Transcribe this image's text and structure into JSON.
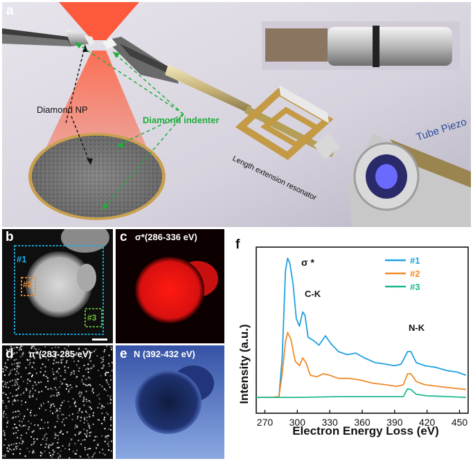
{
  "panel_a": {
    "label": "a",
    "annotations": {
      "diamond_np": "Diamond NP",
      "diamond_indenter": "Diamond indenter",
      "resonator": "Length extension resonator",
      "tube_piezo": "Tube Piezo"
    },
    "colors": {
      "indenter_arrow": "#1fae3a",
      "np_arrow": "#111111",
      "tube_text": "#2a4f9a"
    }
  },
  "panel_b": {
    "label": "b",
    "regions": [
      "#1",
      "#2",
      "#3"
    ],
    "colors": {
      "region1": "#19b0e6",
      "region2": "#f08a2a",
      "region3": "#6fbf3a"
    }
  },
  "panel_c": {
    "label": "c",
    "title": "σ*(286-336 eV)",
    "color": "#e01a12"
  },
  "panel_d": {
    "label": "d",
    "title": "π*(283-285 eV)"
  },
  "panel_e": {
    "label": "e",
    "title": "N (392-432 eV)",
    "color": "#2e55b0"
  },
  "panel_f": {
    "label": "f",
    "annotations": {
      "sigma": "σ *",
      "ck": "C-K",
      "nk": "N-K"
    }
  },
  "chart_data": {
    "type": "line",
    "xlabel": "Electron Energy Loss (eV)",
    "ylabel": "Intensity (a.u.)",
    "xlim": [
      262,
      458
    ],
    "ylim": [
      0,
      1.05
    ],
    "xticks": [
      270,
      300,
      330,
      360,
      390,
      420,
      450
    ],
    "legend_position": "top-right",
    "series": [
      {
        "name": "#1",
        "color": "#1ea0e0",
        "points": [
          [
            262,
            0.1
          ],
          [
            276,
            0.1
          ],
          [
            283,
            0.105
          ],
          [
            286,
            0.35
          ],
          [
            289,
            0.9
          ],
          [
            291,
            0.98
          ],
          [
            293,
            0.95
          ],
          [
            296,
            0.82
          ],
          [
            299,
            0.6
          ],
          [
            302,
            0.55
          ],
          [
            305,
            0.64
          ],
          [
            307,
            0.62
          ],
          [
            310,
            0.48
          ],
          [
            315,
            0.46
          ],
          [
            320,
            0.43
          ],
          [
            326,
            0.49
          ],
          [
            331,
            0.44
          ],
          [
            338,
            0.39
          ],
          [
            346,
            0.37
          ],
          [
            354,
            0.38
          ],
          [
            362,
            0.35
          ],
          [
            372,
            0.32
          ],
          [
            382,
            0.31
          ],
          [
            390,
            0.3
          ],
          [
            396,
            0.31
          ],
          [
            402,
            0.39
          ],
          [
            405,
            0.39
          ],
          [
            410,
            0.32
          ],
          [
            418,
            0.3
          ],
          [
            428,
            0.29
          ],
          [
            438,
            0.27
          ],
          [
            448,
            0.26
          ],
          [
            456,
            0.24
          ]
        ]
      },
      {
        "name": "#2",
        "color": "#f08a2a",
        "points": [
          [
            262,
            0.1
          ],
          [
            276,
            0.1
          ],
          [
            283,
            0.105
          ],
          [
            286,
            0.25
          ],
          [
            289,
            0.45
          ],
          [
            291,
            0.51
          ],
          [
            294,
            0.47
          ],
          [
            298,
            0.33
          ],
          [
            302,
            0.3
          ],
          [
            305,
            0.35
          ],
          [
            308,
            0.32
          ],
          [
            312,
            0.24
          ],
          [
            318,
            0.23
          ],
          [
            324,
            0.25
          ],
          [
            330,
            0.24
          ],
          [
            338,
            0.22
          ],
          [
            348,
            0.22
          ],
          [
            358,
            0.21
          ],
          [
            370,
            0.19
          ],
          [
            382,
            0.18
          ],
          [
            392,
            0.17
          ],
          [
            398,
            0.18
          ],
          [
            402,
            0.25
          ],
          [
            405,
            0.25
          ],
          [
            410,
            0.2
          ],
          [
            418,
            0.18
          ],
          [
            430,
            0.17
          ],
          [
            442,
            0.16
          ],
          [
            456,
            0.15
          ]
        ]
      },
      {
        "name": "#3",
        "color": "#1db890",
        "points": [
          [
            262,
            0.1
          ],
          [
            300,
            0.1
          ],
          [
            340,
            0.105
          ],
          [
            380,
            0.105
          ],
          [
            398,
            0.105
          ],
          [
            402,
            0.155
          ],
          [
            405,
            0.15
          ],
          [
            410,
            0.12
          ],
          [
            420,
            0.11
          ],
          [
            440,
            0.105
          ],
          [
            456,
            0.1
          ]
        ]
      }
    ]
  }
}
